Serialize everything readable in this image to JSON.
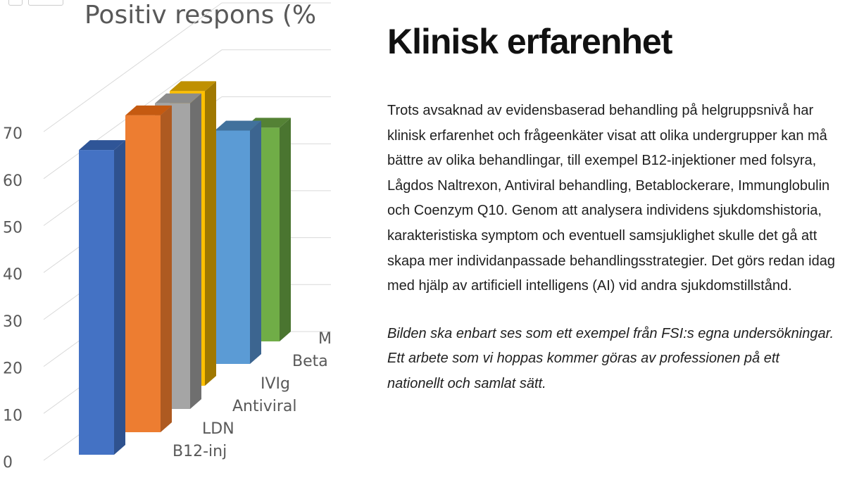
{
  "chart_data": {
    "type": "bar",
    "subtype": "3d-column",
    "title": "Positiv respons (%",
    "categories": [
      "B12-inj",
      "LDN",
      "Antiviral",
      "IVIg",
      "Beta",
      "M"
    ],
    "values": [
      65,
      68,
      66,
      64,
      51,
      47
    ],
    "colors": [
      "#4472c4",
      "#ed7d31",
      "#a5a5a5",
      "#ffc000",
      "#5b9bd5",
      "#70ad47"
    ],
    "side_colors": [
      "#2f528f",
      "#ae5a21",
      "#6f6f6f",
      "#a07800",
      "#3c6590",
      "#4a7530"
    ],
    "top_colors": [
      "#2f5597",
      "#c55a11",
      "#8c8c8c",
      "#bf9000",
      "#41719c",
      "#548235"
    ],
    "yticks": [
      "0",
      "10",
      "20",
      "30",
      "40",
      "50",
      "60",
      "70"
    ],
    "ylim": [
      0,
      70
    ],
    "xlabel": "",
    "ylabel": ""
  },
  "article": {
    "heading": "Klinisk erfarenhet",
    "body": "Trots avsaknad av evidensbaserad behandling på helgruppsnivå har klinisk erfarenhet och frågeenkäter visat att olika undergrupper kan må bättre av olika behandlingar, till exempel B12-injektioner med folsyra, Lågdos Naltrexon, Antiviral behandling, Betablockerare, Immunglobulin och Coenzym Q10. Genom att analysera individens sjukdomshistoria, karakteristiska symptom och eventuell samsjuklighet skulle det gå att skapa mer individanpassade behandlingsstrategier. Det görs redan idag med hjälp av artificiell intelligens (AI) vid andra sjukdomstillstånd.",
    "note": "Bilden ska enbart ses som ett exempel från FSI:s egna undersökningar. Ett arbete som vi hoppas kommer göras av professionen på ett nationellt och samlat sätt."
  }
}
